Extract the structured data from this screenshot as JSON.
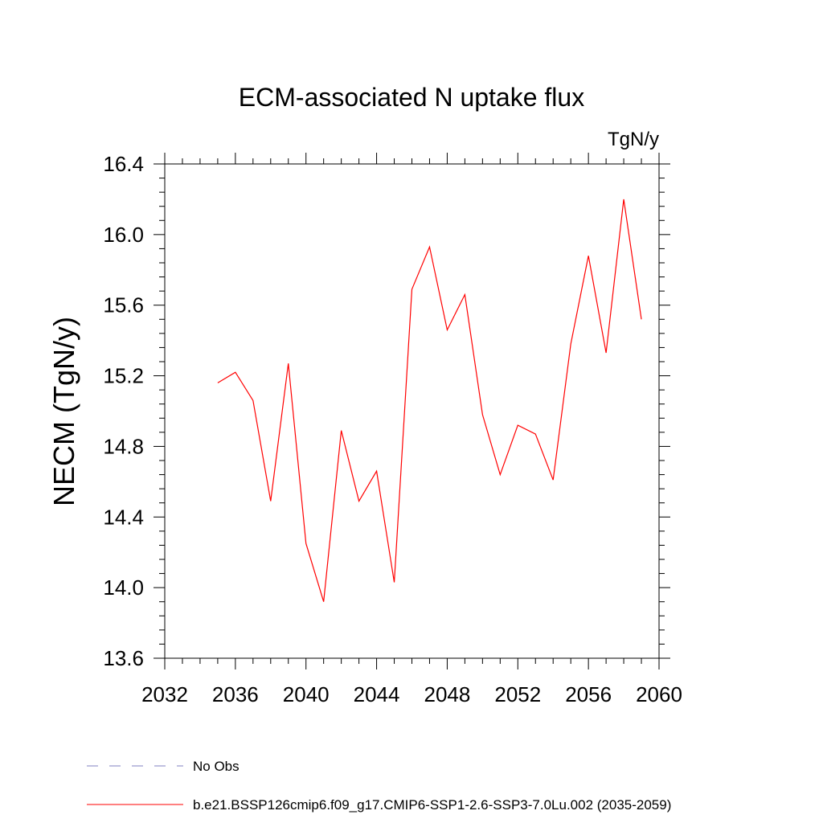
{
  "chart_data": {
    "type": "line",
    "title": "ECM-associated N uptake flux",
    "units": "TgN/y",
    "ylabel": "NECM  (TgN/y)",
    "xlabel": "",
    "xlim": [
      2032,
      2060
    ],
    "ylim": [
      13.6,
      16.4
    ],
    "x_ticks": [
      2032,
      2036,
      2040,
      2044,
      2048,
      2052,
      2056,
      2060
    ],
    "y_ticks": [
      13.6,
      14.0,
      14.4,
      14.8,
      15.2,
      15.6,
      16.0,
      16.4
    ],
    "x_tick_labels": [
      "2032",
      "2036",
      "2040",
      "2044",
      "2048",
      "2052",
      "2056",
      "2060"
    ],
    "y_tick_labels": [
      "13.6",
      "14.0",
      "14.4",
      "14.8",
      "15.2",
      "15.6",
      "16.0",
      "16.4"
    ],
    "grid": false,
    "legend_position": "bottom",
    "series": [
      {
        "name": "b.e21.BSSP126cmip6.f09_g17.CMIP6-SSP1-2.6-SSP3-7.0Lu.002 (2035-2059)",
        "color": "#ff0000",
        "style": "solid",
        "x": [
          2035,
          2036,
          2037,
          2038,
          2039,
          2040,
          2041,
          2042,
          2043,
          2044,
          2045,
          2046,
          2047,
          2048,
          2049,
          2050,
          2051,
          2052,
          2053,
          2054,
          2055,
          2056,
          2057,
          2058,
          2059
        ],
        "y": [
          15.16,
          15.22,
          15.06,
          14.49,
          15.27,
          14.25,
          13.92,
          14.89,
          14.49,
          14.66,
          14.03,
          15.69,
          15.93,
          15.46,
          15.66,
          14.98,
          14.64,
          14.92,
          14.87,
          14.61,
          15.38,
          15.88,
          15.33,
          16.2,
          15.52
        ]
      }
    ],
    "legend": [
      {
        "label": "No Obs",
        "color": "#8080c0",
        "style": "dashed"
      },
      {
        "label": "b.e21.BSSP126cmip6.f09_g17.CMIP6-SSP1-2.6-SSP3-7.0Lu.002 (2035-2059)",
        "color": "#ff0000",
        "style": "solid"
      }
    ]
  }
}
